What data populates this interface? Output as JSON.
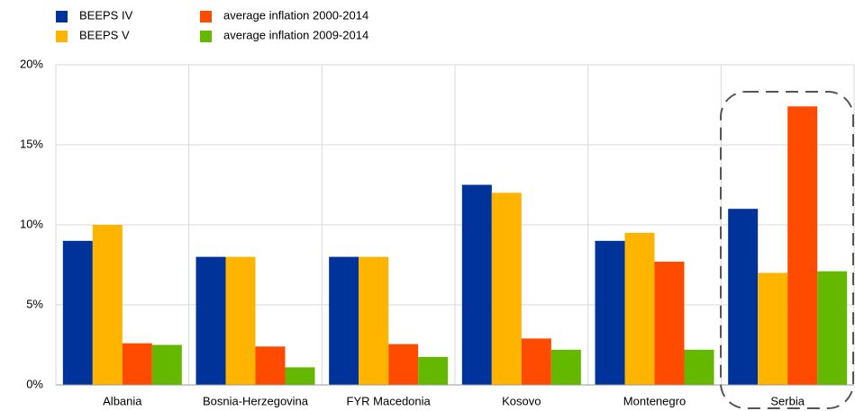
{
  "chart_data": {
    "type": "bar",
    "categories": [
      "Albania",
      "Bosnia-Herzegovina",
      "FYR Macedonia",
      "Kosovo",
      "Montenegro",
      "Serbia"
    ],
    "series": [
      {
        "name": "BEEPS IV",
        "color": "#003399",
        "values": [
          9.0,
          8.0,
          8.0,
          12.5,
          9.0,
          11.0
        ]
      },
      {
        "name": "BEEPS V",
        "color": "#ffb400",
        "values": [
          10.0,
          8.0,
          8.0,
          12.0,
          9.5,
          7.0
        ]
      },
      {
        "name": "average inflation 2000-2014",
        "color": "#ff4b00",
        "values": [
          2.6,
          2.4,
          2.55,
          2.9,
          7.7,
          17.4
        ]
      },
      {
        "name": "average inflation 2009-2014",
        "color": "#65b800",
        "values": [
          2.5,
          1.1,
          1.75,
          2.2,
          2.2,
          7.1
        ]
      }
    ],
    "ylim": [
      0,
      20
    ],
    "yticks": [
      {
        "value": 0,
        "label": "0%"
      },
      {
        "value": 5,
        "label": "5%"
      },
      {
        "value": 10,
        "label": "10%"
      },
      {
        "value": 15,
        "label": "15%"
      },
      {
        "value": 20,
        "label": "20%"
      }
    ],
    "grid": true
  }
}
